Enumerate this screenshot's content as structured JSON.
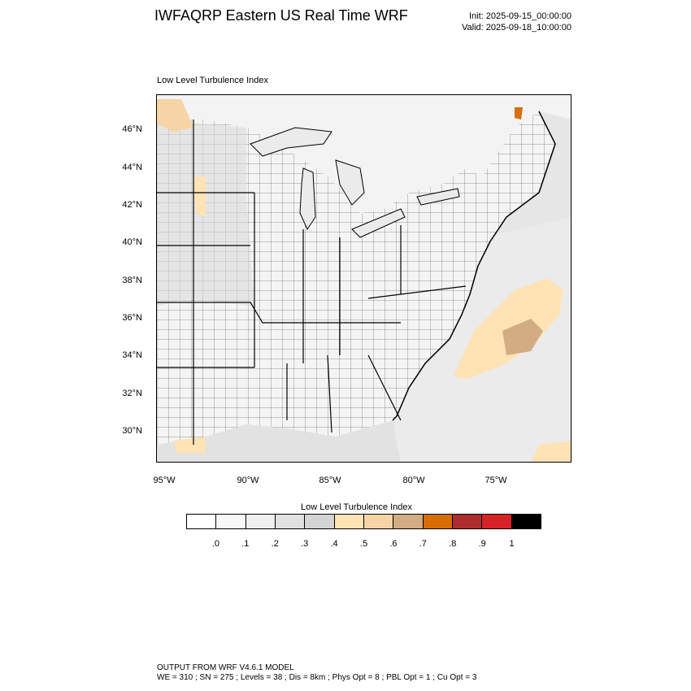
{
  "header": {
    "title": "IWFAQRP Eastern US Real Time WRF",
    "init": "Init: 2025-09-15_00:00:00",
    "valid": "Valid: 2025-09-18_10:00:00"
  },
  "plot": {
    "title": "Low Level Turbulence Index",
    "lat_labels": [
      "46°N",
      "44°N",
      "42°N",
      "40°N",
      "38°N",
      "36°N",
      "34°N",
      "32°N",
      "30°N"
    ],
    "lon_labels": [
      "95°W",
      "90°W",
      "85°W",
      "80°W",
      "75°W"
    ]
  },
  "colorbar": {
    "title": "Low Level Turbulence Index",
    "labels": [
      ".0",
      ".1",
      ".2",
      ".3",
      ".4",
      ".5",
      ".6",
      ".7",
      ".8",
      ".9",
      "1"
    ],
    "colors": [
      "#ffffff",
      "#f7f7f7",
      "#efefef",
      "#e1e1e1",
      "#d4d4d4",
      "#ffe3b4",
      "#f6d4a6",
      "#d2ac83",
      "#d76d05",
      "#ad2d2c",
      "#d72327",
      "#000000"
    ]
  },
  "footer": {
    "line1": "OUTPUT FROM WRF V4.6.1 MODEL",
    "line2": "WE = 310 ; SN = 275 ; Levels = 38 ; Dis = 8km ; Phys Opt = 8 ; PBL Opt = 1 ; Cu Opt = 3"
  }
}
